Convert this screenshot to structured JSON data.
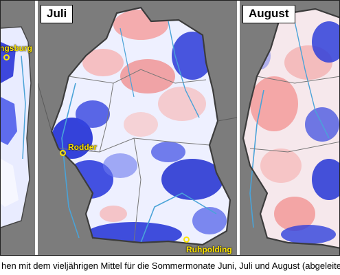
{
  "panels": {
    "juni": {
      "station": "ngsburg"
    },
    "juli": {
      "title": "Juli",
      "stations": [
        "Rodder",
        "Ruhpolding"
      ]
    },
    "august": {
      "title": "August"
    }
  },
  "caption": "hen mit dem vieljährigen Mittel für die Sommermonate Juni, Juli und August (abgeleite",
  "colors": {
    "background": "#7c7c7c",
    "colder": "#1f2fd6",
    "warmer": "#f08a8a",
    "neutral": "#ffffff",
    "rivers": "#4aa3d8",
    "borders": "#555555",
    "station_marker": "#ffe600"
  }
}
